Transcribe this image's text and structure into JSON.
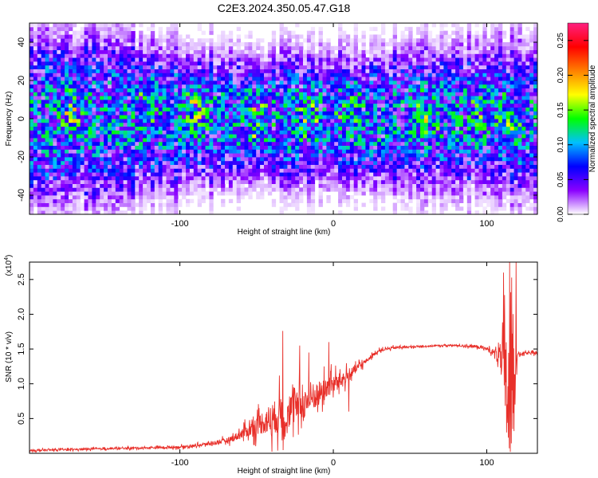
{
  "title": "C2E3.2024.350.05.47.G18",
  "chart_data": [
    {
      "type": "heatmap",
      "xlabel": "Height of straight line (km)",
      "ylabel": "Frequency (Hz)",
      "xlim": [
        -198,
        133
      ],
      "ylim": [
        -50,
        50
      ],
      "xticks": [
        -100,
        0,
        100
      ],
      "yticks": [
        -40,
        -20,
        0,
        20,
        40
      ],
      "colorbar": {
        "label": "Normalized spectral amplitude",
        "range": [
          0.0,
          0.275
        ],
        "ticks": [
          0.0,
          0.05,
          0.1,
          0.15,
          0.2,
          0.25
        ],
        "tick_labels": [
          "0.00",
          "0.05",
          "0.10",
          "0.15",
          "0.20",
          "0.25"
        ],
        "colors": [
          "#ffffff",
          "#8a00ff",
          "#0000ff",
          "#00c0ff",
          "#00ff00",
          "#ffff00",
          "#ff8000",
          "#ff0000",
          "#ff2080"
        ]
      },
      "band": {
        "x": [
          -198,
          -150,
          -100,
          -50,
          0,
          50,
          100,
          133
        ],
        "half_width_hz": [
          40,
          38,
          33,
          30,
          30,
          32,
          34,
          35
        ]
      },
      "hotspots": [
        {
          "x": -170,
          "y": 5,
          "v": 0.2
        },
        {
          "x": -120,
          "y": 10,
          "v": 0.2
        },
        {
          "x": -90,
          "y": 5,
          "v": 0.18
        },
        {
          "x": -50,
          "y": 0,
          "v": 0.2
        },
        {
          "x": -17,
          "y": -2,
          "v": 0.22
        },
        {
          "x": 10,
          "y": 5,
          "v": 0.18
        },
        {
          "x": 60,
          "y": 0,
          "v": 0.2
        },
        {
          "x": 95,
          "y": 5,
          "v": 0.18
        },
        {
          "x": 115,
          "y": 0,
          "v": 0.2
        }
      ]
    },
    {
      "type": "line",
      "xlabel": "Height of straight line (km)",
      "ylabel": "SNR (10 * v/v)",
      "yscale_label": "(x10",
      "yscale_exp": "4",
      "yscale_close": ")",
      "xlim": [
        -198,
        133
      ],
      "ylim": [
        0,
        2.75
      ],
      "xticks": [
        -100,
        0,
        100
      ],
      "yticks": [
        0.5,
        1.0,
        1.5,
        2.0,
        2.5
      ],
      "ytick_labels": [
        "0.5",
        "1.0",
        "1.5",
        "2.0",
        "2.5"
      ],
      "color": "#e8302a",
      "series": [
        {
          "x": [
            -198,
            -180,
            -160,
            -140,
            -120,
            -100,
            -90,
            -80,
            -70,
            -65,
            -60,
            -55,
            -50,
            -45,
            -40,
            -35,
            -30,
            -25,
            -20,
            -15,
            -10,
            -5,
            0,
            5,
            10,
            15,
            20,
            25,
            30,
            40,
            50,
            60,
            70,
            80,
            90,
            95,
            100,
            105,
            108,
            110,
            112,
            114,
            116,
            118,
            120,
            125,
            133
          ],
          "y": [
            0.04,
            0.05,
            0.06,
            0.07,
            0.08,
            0.09,
            0.11,
            0.14,
            0.18,
            0.22,
            0.28,
            0.34,
            0.4,
            0.46,
            0.5,
            0.55,
            0.6,
            0.65,
            0.7,
            0.78,
            0.85,
            0.92,
            1.0,
            1.05,
            1.12,
            1.22,
            1.3,
            1.4,
            1.48,
            1.52,
            1.53,
            1.54,
            1.55,
            1.55,
            1.54,
            1.53,
            1.5,
            1.45,
            1.4,
            1.3,
            1.0,
            0.9,
            1.1,
            1.2,
            1.42,
            1.44,
            1.44
          ],
          "noise": [
            0.02,
            0.02,
            0.02,
            0.02,
            0.02,
            0.03,
            0.03,
            0.04,
            0.06,
            0.08,
            0.12,
            0.16,
            0.22,
            0.3,
            0.38,
            0.42,
            0.42,
            0.38,
            0.36,
            0.34,
            0.3,
            0.26,
            0.22,
            0.18,
            0.14,
            0.1,
            0.06,
            0.04,
            0.03,
            0.03,
            0.02,
            0.02,
            0.02,
            0.02,
            0.03,
            0.04,
            0.05,
            0.08,
            0.2,
            0.6,
            1.2,
            1.3,
            1.2,
            0.6,
            0.06,
            0.03,
            0.03
          ]
        }
      ],
      "spikes": [
        {
          "x": -33,
          "y": 1.76
        },
        {
          "x": -32,
          "y": 0.2
        },
        {
          "x": -22,
          "y": 1.55
        },
        {
          "x": -16,
          "y": 1.45
        },
        {
          "x": -3,
          "y": 1.6
        },
        {
          "x": 10,
          "y": 0.6
        },
        {
          "x": 111,
          "y": 2.6
        },
        {
          "x": 113,
          "y": 0.3
        },
        {
          "x": 115,
          "y": 2.75
        },
        {
          "x": 117,
          "y": 0.35
        },
        {
          "x": 119,
          "y": 2.75
        }
      ]
    }
  ]
}
